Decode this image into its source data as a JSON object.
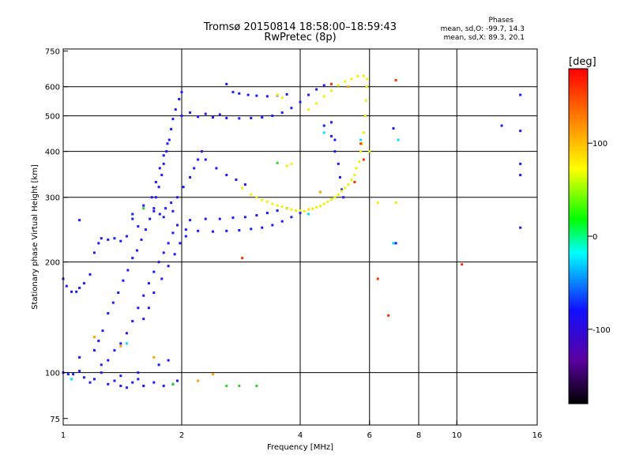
{
  "header": {
    "title": "Tromsø 20150814 18:58:00–18:59:43",
    "subtitle": "RwPretec (8p)",
    "stats_title": "Phases",
    "stats_o": "mean, sd,O: -99.7, 14.3",
    "stats_x": "mean, sd,X: 89.3, 20.1"
  },
  "chart_data": {
    "type": "scatter",
    "xlabel": "Frequency [MHz]",
    "ylabel": "Stationary phase Virtual Height [km]",
    "xscale": "log",
    "yscale": "log",
    "xlim": [
      1,
      16
    ],
    "ylim": [
      72,
      760
    ],
    "xticks": [
      1,
      2,
      4,
      6,
      8,
      10,
      16
    ],
    "xtick_labels": [
      "1",
      "2",
      "4",
      "6",
      "8",
      "10",
      "16"
    ],
    "yticks": [
      75,
      100,
      200,
      300,
      400,
      500,
      600,
      750
    ],
    "ytick_labels": [
      "75",
      "100",
      "200",
      "300",
      "400",
      "500",
      "600",
      "750"
    ],
    "grid_x": [
      2,
      4,
      6,
      8,
      10
    ],
    "grid_y": [
      100,
      200,
      300,
      400,
      500,
      600
    ],
    "colorbar": {
      "label": "[deg]",
      "range": [
        -180,
        180
      ],
      "ticks": [
        -100,
        0,
        100
      ],
      "tick_labels": [
        "-100",
        "0",
        "100"
      ],
      "placement": "right"
    },
    "series": [
      {
        "color": "#1a1aff",
        "points": [
          [
            1.0,
            100
          ],
          [
            1.03,
            99
          ],
          [
            1.06,
            99
          ],
          [
            1.1,
            101
          ],
          [
            1.13,
            97
          ],
          [
            1.17,
            94
          ],
          [
            1.2,
            96
          ],
          [
            1.25,
            100
          ],
          [
            1.3,
            93
          ],
          [
            1.35,
            95
          ],
          [
            1.4,
            92
          ],
          [
            1.45,
            91
          ],
          [
            1.5,
            94
          ],
          [
            1.55,
            96
          ],
          [
            1.6,
            92
          ],
          [
            1.7,
            94
          ],
          [
            1.8,
            92
          ],
          [
            1.9,
            93
          ],
          [
            1.0,
            180
          ],
          [
            1.02,
            172
          ],
          [
            1.05,
            166
          ],
          [
            1.08,
            166
          ],
          [
            1.1,
            170
          ],
          [
            1.13,
            175
          ],
          [
            1.17,
            185
          ],
          [
            1.2,
            212
          ],
          [
            1.23,
            225
          ],
          [
            1.25,
            232
          ],
          [
            1.3,
            230
          ],
          [
            1.35,
            232
          ],
          [
            1.4,
            228
          ],
          [
            1.45,
            235
          ],
          [
            1.5,
            262
          ],
          [
            1.55,
            250
          ],
          [
            1.1,
            260
          ],
          [
            1.2,
            115
          ],
          [
            1.23,
            122
          ],
          [
            1.26,
            130
          ],
          [
            1.3,
            145
          ],
          [
            1.34,
            155
          ],
          [
            1.38,
            165
          ],
          [
            1.42,
            178
          ],
          [
            1.46,
            190
          ],
          [
            1.5,
            205
          ],
          [
            1.54,
            215
          ],
          [
            1.58,
            230
          ],
          [
            1.62,
            245
          ],
          [
            1.66,
            262
          ],
          [
            1.7,
            280
          ],
          [
            1.72,
            300
          ],
          [
            1.75,
            320
          ],
          [
            1.78,
            345
          ],
          [
            1.8,
            370
          ],
          [
            1.83,
            400
          ],
          [
            1.86,
            430
          ],
          [
            1.88,
            460
          ],
          [
            1.9,
            490
          ],
          [
            1.93,
            520
          ],
          [
            1.97,
            555
          ],
          [
            2.0,
            580
          ],
          [
            1.3,
            108
          ],
          [
            1.35,
            115
          ],
          [
            1.4,
            120
          ],
          [
            1.45,
            128
          ],
          [
            1.5,
            138
          ],
          [
            1.55,
            150
          ],
          [
            1.6,
            162
          ],
          [
            1.65,
            175
          ],
          [
            1.7,
            188
          ],
          [
            1.75,
            200
          ],
          [
            1.8,
            212
          ],
          [
            1.85,
            225
          ],
          [
            1.9,
            240
          ],
          [
            1.95,
            252
          ],
          [
            1.6,
            140
          ],
          [
            1.65,
            150
          ],
          [
            1.7,
            165
          ],
          [
            1.78,
            180
          ],
          [
            1.85,
            195
          ],
          [
            1.92,
            210
          ],
          [
            1.98,
            225
          ],
          [
            2.05,
            235
          ],
          [
            1.68,
            300
          ],
          [
            1.72,
            330
          ],
          [
            1.76,
            360
          ],
          [
            1.8,
            390
          ],
          [
            1.84,
            420
          ],
          [
            1.76,
            270
          ],
          [
            1.82,
            280
          ],
          [
            1.88,
            290
          ],
          [
            1.95,
            300
          ],
          [
            2.02,
            320
          ],
          [
            2.1,
            340
          ],
          [
            2.15,
            360
          ],
          [
            2.2,
            380
          ],
          [
            2.25,
            400
          ],
          [
            2.05,
            245
          ],
          [
            2.2,
            243
          ],
          [
            2.4,
            242
          ],
          [
            2.6,
            243
          ],
          [
            2.8,
            244
          ],
          [
            3.0,
            246
          ],
          [
            3.2,
            248
          ],
          [
            3.4,
            252
          ],
          [
            3.6,
            258
          ],
          [
            3.8,
            265
          ],
          [
            4.0,
            272
          ],
          [
            2.1,
            260
          ],
          [
            2.3,
            262
          ],
          [
            2.5,
            262
          ],
          [
            2.7,
            264
          ],
          [
            2.9,
            265
          ],
          [
            3.1,
            268
          ],
          [
            3.3,
            272
          ],
          [
            3.5,
            276
          ],
          [
            3.7,
            280
          ],
          [
            1.5,
            270
          ],
          [
            1.6,
            285
          ],
          [
            1.7,
            275
          ],
          [
            1.8,
            265
          ],
          [
            1.9,
            275
          ],
          [
            2.0,
            500
          ],
          [
            2.2,
            497
          ],
          [
            2.4,
            495
          ],
          [
            2.6,
            493
          ],
          [
            2.8,
            492
          ],
          [
            3.0,
            493
          ],
          [
            3.2,
            495
          ],
          [
            3.4,
            500
          ],
          [
            3.6,
            510
          ],
          [
            3.8,
            525
          ],
          [
            4.0,
            545
          ],
          [
            4.2,
            570
          ],
          [
            4.4,
            590
          ],
          [
            4.6,
            605
          ],
          [
            2.1,
            510
          ],
          [
            2.3,
            506
          ],
          [
            2.5,
            504
          ],
          [
            2.6,
            610
          ],
          [
            2.7,
            580
          ],
          [
            2.8,
            575
          ],
          [
            2.95,
            570
          ],
          [
            3.1,
            567
          ],
          [
            3.3,
            565
          ],
          [
            3.5,
            568
          ],
          [
            3.7,
            572
          ],
          [
            2.3,
            380
          ],
          [
            2.45,
            360
          ],
          [
            2.6,
            345
          ],
          [
            2.75,
            335
          ],
          [
            2.9,
            325
          ],
          [
            4.6,
            470
          ],
          [
            4.8,
            440
          ],
          [
            4.9,
            400
          ],
          [
            5.0,
            370
          ],
          [
            5.05,
            340
          ],
          [
            5.1,
            315
          ],
          [
            5.15,
            300
          ],
          [
            4.8,
            480
          ],
          [
            4.9,
            430
          ],
          [
            1.1,
            110
          ],
          [
            1.25,
            105
          ],
          [
            1.4,
            98
          ],
          [
            1.55,
            100
          ],
          [
            1.75,
            105
          ],
          [
            1.85,
            108
          ],
          [
            1.95,
            95
          ],
          [
            6.9,
            462
          ],
          [
            7.0,
            225
          ],
          [
            14.5,
            570
          ],
          [
            14.5,
            455
          ],
          [
            14.5,
            370
          ],
          [
            14.5,
            345
          ],
          [
            14.5,
            248
          ],
          [
            13.0,
            470
          ]
        ]
      },
      {
        "color": "#f0f000",
        "points": [
          [
            2.85,
            318
          ],
          [
            3.0,
            305
          ],
          [
            3.2,
            295
          ],
          [
            3.4,
            288
          ],
          [
            3.6,
            283
          ],
          [
            3.8,
            278
          ],
          [
            4.0,
            276
          ],
          [
            4.2,
            278
          ],
          [
            4.4,
            282
          ],
          [
            4.6,
            288
          ],
          [
            4.8,
            296
          ],
          [
            5.0,
            305
          ],
          [
            5.2,
            318
          ],
          [
            5.4,
            335
          ],
          [
            5.55,
            360
          ],
          [
            5.7,
            400
          ],
          [
            5.8,
            450
          ],
          [
            5.85,
            500
          ],
          [
            5.88,
            550
          ],
          [
            5.9,
            600
          ],
          [
            5.92,
            630
          ],
          [
            3.1,
            300
          ],
          [
            3.3,
            292
          ],
          [
            3.5,
            285
          ],
          [
            3.7,
            280
          ],
          [
            3.9,
            276
          ],
          [
            4.1,
            275
          ],
          [
            4.3,
            279
          ],
          [
            4.5,
            284
          ],
          [
            4.7,
            292
          ],
          [
            4.9,
            300
          ],
          [
            5.1,
            312
          ],
          [
            5.3,
            325
          ],
          [
            5.5,
            345
          ],
          [
            5.65,
            375
          ],
          [
            5.75,
            420
          ],
          [
            4.2,
            520
          ],
          [
            4.4,
            540
          ],
          [
            4.6,
            565
          ],
          [
            4.8,
            585
          ],
          [
            5.0,
            605
          ],
          [
            5.2,
            620
          ],
          [
            5.4,
            630
          ],
          [
            5.6,
            640
          ],
          [
            5.8,
            642
          ],
          [
            3.5,
            570
          ],
          [
            3.6,
            560
          ],
          [
            3.8,
            370
          ],
          [
            3.7,
            365
          ],
          [
            6.3,
            290
          ],
          [
            7.0,
            290
          ],
          [
            6.0,
            400
          ]
        ]
      },
      {
        "color": "#ff3000",
        "points": [
          [
            5.7,
            420
          ],
          [
            5.8,
            380
          ],
          [
            5.5,
            330
          ],
          [
            6.7,
            143
          ],
          [
            6.3,
            180
          ],
          [
            10.3,
            197
          ],
          [
            2.85,
            205
          ],
          [
            7.0,
            625
          ],
          [
            4.8,
            610
          ]
        ]
      },
      {
        "color": "#00e0ff",
        "points": [
          [
            1.05,
            96
          ],
          [
            1.45,
            120
          ],
          [
            4.2,
            270
          ],
          [
            4.6,
            450
          ],
          [
            5.7,
            430
          ],
          [
            7.1,
            430
          ],
          [
            6.9,
            225
          ]
        ]
      },
      {
        "color": "#30d030",
        "points": [
          [
            1.9,
            93
          ],
          [
            2.6,
            92
          ],
          [
            2.8,
            92
          ],
          [
            3.1,
            92
          ],
          [
            1.6,
            280
          ],
          [
            3.5,
            372
          ]
        ]
      },
      {
        "color": "#ffa000",
        "points": [
          [
            1.2,
            125
          ],
          [
            1.4,
            118
          ],
          [
            1.7,
            110
          ],
          [
            2.2,
            95
          ],
          [
            2.4,
            99
          ],
          [
            4.5,
            310
          ],
          [
            5.3,
            600
          ]
        ]
      }
    ]
  }
}
